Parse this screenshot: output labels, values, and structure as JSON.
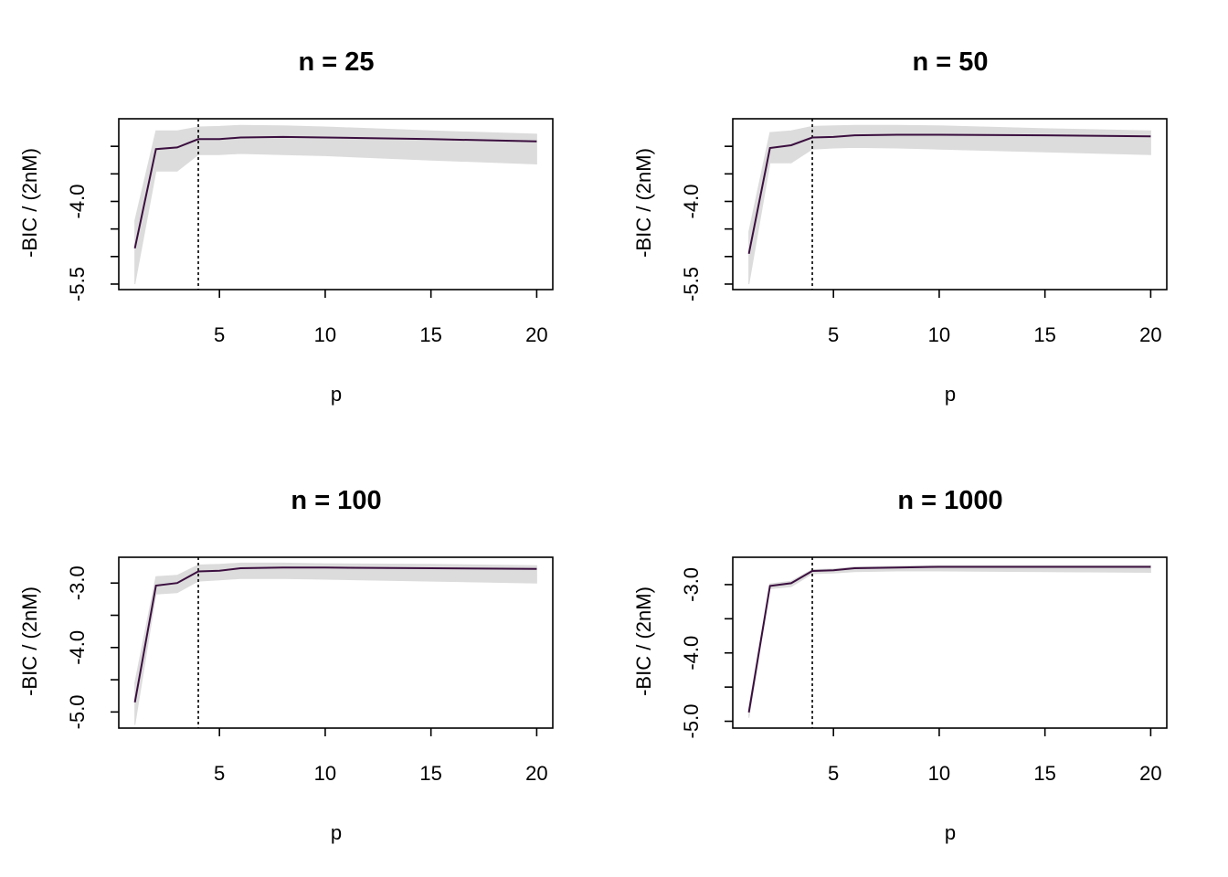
{
  "figure": {
    "colors": {
      "band": "#dcdcdc",
      "line": "#3b0f3f",
      "vline": "#000000",
      "axis": "#000000"
    },
    "panels": [
      {
        "title": "n = 25",
        "xlabel": "p",
        "ylabel": "-BIC / (2nM)"
      },
      {
        "title": "n = 50",
        "xlabel": "p",
        "ylabel": "-BIC / (2nM)"
      },
      {
        "title": "n = 100",
        "xlabel": "p",
        "ylabel": "-BIC / (2nM)"
      },
      {
        "title": "n = 1000",
        "xlabel": "p",
        "ylabel": "-BIC / (2nM)"
      }
    ]
  },
  "chart_data": [
    {
      "type": "line",
      "title": "n = 25",
      "xlabel": "p",
      "ylabel": "-BIC / (2nM)",
      "xlim": [
        1,
        20
      ],
      "ylim": [
        -5.6,
        -2.5
      ],
      "xticks": [
        5,
        10,
        15,
        20
      ],
      "yticks": [
        -5.5,
        -5.0,
        -4.5,
        -4.0,
        -3.5,
        -3.0
      ],
      "ytick_labels": [
        "-5.5",
        "",
        "",
        "-4.0",
        "",
        ""
      ],
      "vline_x": 4,
      "x": [
        1,
        2,
        3,
        4,
        5,
        6,
        8,
        10,
        15,
        20
      ],
      "series": [
        {
          "values": [
            -4.85,
            -3.05,
            -3.02,
            -2.87,
            -2.87,
            -2.84,
            -2.83,
            -2.84,
            -2.87,
            -2.91
          ]
        }
      ],
      "band": {
        "upper": [
          -4.35,
          -2.72,
          -2.72,
          -2.65,
          -2.64,
          -2.62,
          -2.63,
          -2.65,
          -2.72,
          -2.78
        ],
        "lower": [
          -5.5,
          -3.45,
          -3.45,
          -3.15,
          -3.15,
          -3.13,
          -3.15,
          -3.17,
          -3.25,
          -3.32
        ]
      }
    },
    {
      "type": "line",
      "title": "n = 50",
      "xlabel": "p",
      "ylabel": "-BIC / (2nM)",
      "xlim": [
        1,
        20
      ],
      "ylim": [
        -5.6,
        -2.5
      ],
      "xticks": [
        5,
        10,
        15,
        20
      ],
      "yticks": [
        -5.5,
        -5.0,
        -4.5,
        -4.0,
        -3.5,
        -3.0
      ],
      "ytick_labels": [
        "-5.5",
        "",
        "",
        "-4.0",
        "",
        ""
      ],
      "vline_x": 4,
      "x": [
        1,
        2,
        3,
        4,
        5,
        6,
        8,
        10,
        15,
        20
      ],
      "series": [
        {
          "values": [
            -4.95,
            -3.03,
            -2.98,
            -2.84,
            -2.83,
            -2.8,
            -2.79,
            -2.79,
            -2.8,
            -2.82
          ]
        }
      ],
      "band": {
        "upper": [
          -4.55,
          -2.75,
          -2.72,
          -2.64,
          -2.63,
          -2.62,
          -2.62,
          -2.63,
          -2.68,
          -2.72
        ],
        "lower": [
          -5.5,
          -3.3,
          -3.3,
          -3.05,
          -3.03,
          -3.02,
          -3.03,
          -3.05,
          -3.1,
          -3.15
        ]
      }
    },
    {
      "type": "line",
      "title": "n = 100",
      "xlabel": "p",
      "ylabel": "-BIC / (2nM)",
      "xlim": [
        1,
        20
      ],
      "ylim": [
        -5.25,
        -2.6
      ],
      "xticks": [
        5,
        10,
        15,
        20
      ],
      "yticks": [
        -5.0,
        -4.5,
        -4.0,
        -3.5,
        -3.0
      ],
      "ytick_labels": [
        "-5.0",
        "",
        "-4.0",
        "",
        "-3.0"
      ],
      "vline_x": 4,
      "x": [
        1,
        2,
        3,
        4,
        5,
        6,
        8,
        10,
        15,
        20
      ],
      "series": [
        {
          "values": [
            -4.85,
            -3.04,
            -3.0,
            -2.82,
            -2.81,
            -2.77,
            -2.76,
            -2.76,
            -2.77,
            -2.78
          ]
        }
      ],
      "band": {
        "upper": [
          -4.55,
          -2.9,
          -2.88,
          -2.72,
          -2.71,
          -2.69,
          -2.69,
          -2.7,
          -2.71,
          -2.73
        ],
        "lower": [
          -5.2,
          -3.17,
          -3.15,
          -2.97,
          -2.95,
          -2.93,
          -2.93,
          -2.94,
          -2.97,
          -3.0
        ]
      }
    },
    {
      "type": "line",
      "title": "n = 1000",
      "xlabel": "p",
      "ylabel": "-BIC / (2nM)",
      "xlim": [
        1,
        20
      ],
      "ylim": [
        -5.1,
        -2.6
      ],
      "xticks": [
        5,
        10,
        15,
        20
      ],
      "yticks": [
        -5.0,
        -4.5,
        -4.0,
        -3.5,
        -3.0
      ],
      "ytick_labels": [
        "-5.0",
        "",
        "-4.0",
        "",
        "-3.0"
      ],
      "vline_x": 4,
      "x": [
        1,
        2,
        3,
        4,
        5,
        6,
        8,
        10,
        15,
        20
      ],
      "series": [
        {
          "values": [
            -4.87,
            -3.02,
            -2.98,
            -2.8,
            -2.79,
            -2.76,
            -2.75,
            -2.74,
            -2.74,
            -2.74
          ]
        }
      ],
      "band": {
        "upper": [
          -4.8,
          -2.99,
          -2.95,
          -2.78,
          -2.77,
          -2.74,
          -2.73,
          -2.72,
          -2.72,
          -2.72
        ],
        "lower": [
          -4.95,
          -3.06,
          -3.03,
          -2.84,
          -2.83,
          -2.81,
          -2.8,
          -2.8,
          -2.81,
          -2.82
        ]
      }
    }
  ]
}
